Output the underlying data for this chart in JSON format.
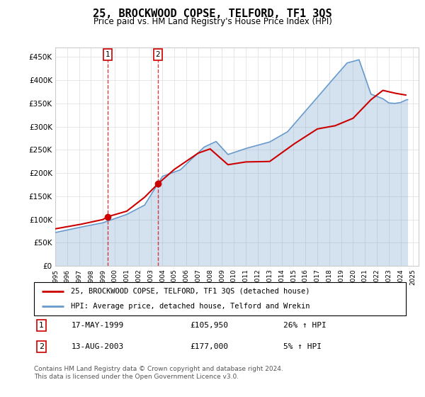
{
  "title": "25, BROCKWOOD COPSE, TELFORD, TF1 3QS",
  "subtitle": "Price paid vs. HM Land Registry's House Price Index (HPI)",
  "sale1_date": "17-MAY-1999",
  "sale1_price": 105950,
  "sale1_hpi": "26% ↑ HPI",
  "sale1_label": "1",
  "sale1_year": 1999.38,
  "sale2_date": "13-AUG-2003",
  "sale2_price": 177000,
  "sale2_hpi": "5% ↑ HPI",
  "sale2_label": "2",
  "sale2_year": 2003.62,
  "legend_line1": "25, BROCKWOOD COPSE, TELFORD, TF1 3QS (detached house)",
  "legend_line2": "HPI: Average price, detached house, Telford and Wrekin",
  "footer": "Contains HM Land Registry data © Crown copyright and database right 2024.\nThis data is licensed under the Open Government Licence v3.0.",
  "hpi_color": "#6699cc",
  "price_color": "#cc0000",
  "vline_color": "#cc0000",
  "sale_marker_color": "#cc0000",
  "ylim": [
    0,
    470000
  ],
  "xlim_start": 1995.0,
  "xlim_end": 2025.5,
  "yticks": [
    0,
    50000,
    100000,
    150000,
    200000,
    250000,
    300000,
    350000,
    400000,
    450000
  ],
  "ytick_labels": [
    "£0",
    "£50K",
    "£100K",
    "£150K",
    "£200K",
    "£250K",
    "£300K",
    "£350K",
    "£400K",
    "£450K"
  ],
  "xticks": [
    1995,
    1996,
    1997,
    1998,
    1999,
    2000,
    2001,
    2002,
    2003,
    2004,
    2005,
    2006,
    2007,
    2008,
    2009,
    2010,
    2011,
    2012,
    2013,
    2014,
    2015,
    2016,
    2017,
    2018,
    2019,
    2020,
    2021,
    2022,
    2023,
    2024,
    2025
  ]
}
